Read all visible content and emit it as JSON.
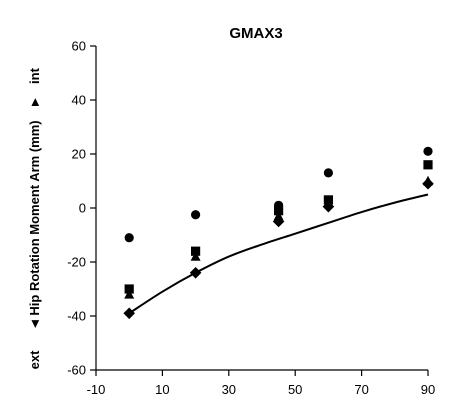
{
  "chart_data": {
    "type": "scatter",
    "title": "GMAX3",
    "xlabel": "",
    "ylabel": "Hip Rotation Moment Arm (mm)",
    "ylabel_pos": "int",
    "ylabel_neg": "ext",
    "xlim": [
      -10,
      90
    ],
    "ylim": [
      -60,
      60
    ],
    "x_ticks": [
      -10,
      10,
      30,
      50,
      70,
      90
    ],
    "y_ticks": [
      -60,
      -40,
      -20,
      0,
      20,
      40,
      60
    ],
    "grid": false,
    "series": [
      {
        "marker": "circle",
        "x": [
          0,
          20,
          45,
          60,
          90
        ],
        "y": [
          -11,
          -2.5,
          1,
          13,
          21
        ]
      },
      {
        "marker": "square",
        "x": [
          0,
          20,
          45,
          60,
          90
        ],
        "y": [
          -30,
          -16,
          -1,
          3,
          16
        ]
      },
      {
        "marker": "triangle",
        "x": [
          0,
          20,
          45,
          60,
          90
        ],
        "y": [
          -32,
          -18,
          -3,
          2,
          10
        ]
      },
      {
        "marker": "diamond",
        "x": [
          0,
          20,
          45,
          60,
          90
        ],
        "y": [
          -39,
          -24,
          -5,
          0.5,
          9
        ]
      },
      {
        "marker": "line",
        "x": [
          0,
          10,
          20,
          30,
          40,
          50,
          60,
          70,
          80,
          90
        ],
        "y": [
          -39,
          -31,
          -24,
          -18,
          -13.5,
          -9.5,
          -5.5,
          -1.5,
          2,
          5
        ]
      }
    ]
  }
}
